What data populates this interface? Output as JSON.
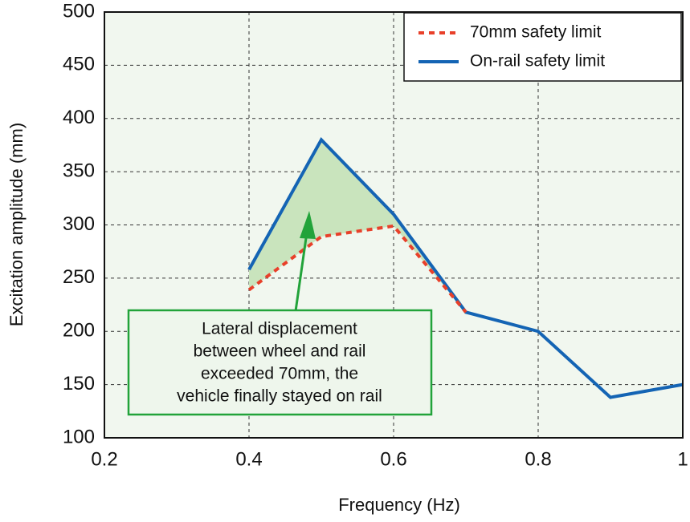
{
  "chart_data": {
    "type": "line",
    "xlabel": "Frequency (Hz)",
    "ylabel": "Excitation amplitude (mm)",
    "xlim": [
      0.2,
      1
    ],
    "ylim": [
      100,
      500
    ],
    "xticks": [
      0.2,
      0.4,
      0.6,
      0.8,
      1
    ],
    "yticks": [
      100,
      150,
      200,
      250,
      300,
      350,
      400,
      450,
      500
    ],
    "grid": true,
    "legend": "upper right",
    "fill_between_color": "#c9e4bd",
    "series": [
      {
        "name": "70mm safety limit",
        "color": "#e8402a",
        "dashed": true,
        "x": [
          0.4,
          0.5,
          0.6,
          0.7
        ],
        "values": [
          239,
          289,
          299,
          218
        ]
      },
      {
        "name": "On-rail safety limit",
        "color": "#1464b4",
        "dashed": false,
        "x": [
          0.4,
          0.5,
          0.6,
          0.7,
          0.8,
          0.9,
          1
        ],
        "values": [
          258,
          380,
          310,
          218,
          200,
          138,
          150
        ]
      }
    ],
    "annotation": {
      "lines": [
        "Lateral displacement",
        "between wheel and rail",
        "exceeded 70mm, the",
        "vehicle finally stayed on rail"
      ],
      "color": "#22a33a"
    }
  }
}
